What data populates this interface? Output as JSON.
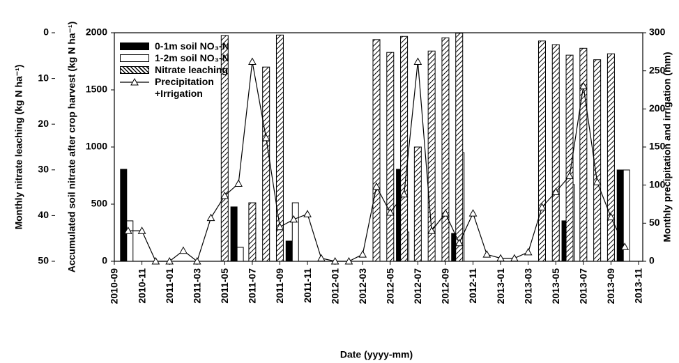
{
  "chart_data": {
    "type": "combo",
    "x_label": "Date (yyyy-mm)",
    "y_label": "Accumulated soil nitrate after crop harvest (kg N ha⁻¹)",
    "y2_label": "Monthly precipitation and irrigation (mm)",
    "y3_label": "Monthly nitrate leaching (kg N ha⁻¹)",
    "x": [
      "2010-10",
      "2010-11",
      "2010-12",
      "2011-01",
      "2011-02",
      "2011-03",
      "2011-04",
      "2011-05",
      "2011-06",
      "2011-07",
      "2011-08",
      "2011-09",
      "2011-10",
      "2011-11",
      "2011-12",
      "2012-01",
      "2012-02",
      "2012-03",
      "2012-04",
      "2012-05",
      "2012-06",
      "2012-07",
      "2012-08",
      "2012-09",
      "2012-10",
      "2012-11",
      "2012-12",
      "2013-01",
      "2013-02",
      "2013-03",
      "2013-04",
      "2013-05",
      "2013-06",
      "2013-07",
      "2013-08",
      "2013-09",
      "2013-10"
    ],
    "xlim": [
      "2010-09",
      "2013-11"
    ],
    "xticks": [
      "2010-09",
      "2010-11",
      "2011-01",
      "2011-03",
      "2011-05",
      "2011-07",
      "2011-09",
      "2011-11",
      "2012-01",
      "2012-03",
      "2012-05",
      "2012-07",
      "2012-09",
      "2012-11",
      "2013-01",
      "2013-03",
      "2013-05",
      "2013-07",
      "2013-09",
      "2013-11"
    ],
    "ylim": [
      0,
      2000
    ],
    "yticks": [
      0,
      500,
      1000,
      1500,
      2000
    ],
    "y2lim": [
      0,
      300
    ],
    "y2ticks": [
      0,
      50,
      100,
      150,
      200,
      250,
      300
    ],
    "y3lim": [
      50,
      0
    ],
    "y3ticks": [
      0,
      10,
      20,
      30,
      40,
      50
    ],
    "legend": "upper-left",
    "series": [
      {
        "name": "0-1m soil NO₃-N",
        "type": "bar",
        "color": "#000000",
        "axis": "y",
        "offset": "left",
        "values": [
          805,
          null,
          null,
          null,
          null,
          null,
          null,
          null,
          476,
          null,
          null,
          null,
          177,
          null,
          null,
          null,
          null,
          null,
          null,
          null,
          805,
          null,
          null,
          null,
          244,
          null,
          null,
          null,
          null,
          null,
          null,
          null,
          354,
          null,
          null,
          null,
          799
        ]
      },
      {
        "name": "1-2m soil NO₃-N",
        "type": "bar",
        "color": "#ffffff",
        "axis": "y",
        "offset": "right",
        "values": [
          354,
          null,
          null,
          null,
          null,
          null,
          null,
          null,
          122,
          null,
          null,
          null,
          512,
          null,
          null,
          null,
          null,
          null,
          null,
          null,
          256,
          null,
          null,
          null,
          951,
          null,
          null,
          null,
          null,
          null,
          null,
          null,
          671,
          null,
          null,
          null,
          799
        ]
      },
      {
        "name": "Nitrate leaching",
        "type": "bar",
        "color": "#ffffff",
        "pattern": "hatch",
        "axis": "y3",
        "offset": "center",
        "values": [
          null,
          null,
          null,
          null,
          null,
          null,
          null,
          0.6,
          null,
          37.2,
          7.5,
          0.5,
          null,
          null,
          null,
          null,
          null,
          null,
          1.5,
          4.3,
          0.8,
          25,
          4,
          1.1,
          0.1,
          null,
          null,
          null,
          null,
          null,
          1.8,
          2.6,
          4.9,
          3.4,
          5.9,
          4.6,
          null
        ]
      },
      {
        "name": "Precipitation +Irrigation",
        "type": "line",
        "color": "#000000",
        "axis": "y2",
        "marker": "triangle",
        "values": [
          40,
          40,
          0,
          0,
          14,
          0,
          57,
          86,
          102,
          262,
          162,
          45,
          55,
          62,
          4,
          0,
          0,
          9,
          98,
          64,
          88,
          262,
          40,
          63,
          24,
          63,
          9,
          4,
          4,
          12,
          71,
          91,
          112,
          230,
          104,
          58,
          19
        ]
      }
    ]
  }
}
